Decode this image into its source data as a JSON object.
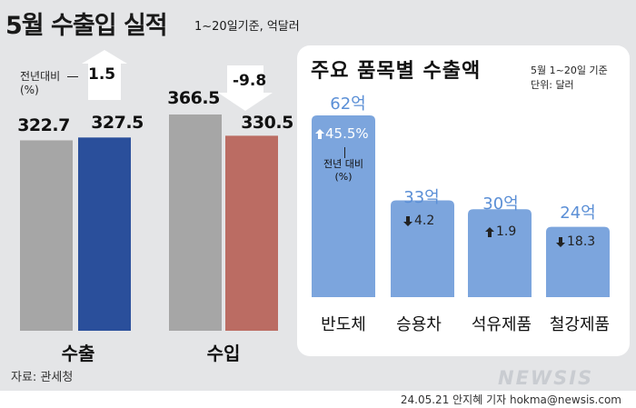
{
  "header": {
    "title": "5월 수출입 실적",
    "subtitle": "1~20일기준, 억달러"
  },
  "change_note": {
    "line1": "전년대비",
    "line2": "(%)"
  },
  "chart_data": [
    {
      "type": "bar",
      "title": "5월 수출입 실적",
      "unit": "억달러",
      "categories": [
        "수출",
        "수입"
      ],
      "series": [
        {
          "name": "",
          "values": [
            322.7,
            366.5
          ],
          "labels": [
            "322.7",
            "366.5"
          ],
          "color": "#a6a6a6"
        },
        {
          "name": "",
          "values": [
            327.5,
            330.5
          ],
          "labels": [
            "327.5",
            "330.5"
          ],
          "colors": [
            "#2a4f9b",
            "#bb6c63"
          ]
        }
      ],
      "yoy_change_pct": [
        1.5,
        -9.8
      ],
      "yoy_change_labels": [
        "1.5",
        "-9.8"
      ],
      "ylim": [
        0,
        400
      ]
    },
    {
      "type": "bar",
      "title": "주요 품목별 수출액",
      "unit": "달러",
      "note_line1": "5월 1~20일 기준",
      "note_line2": "단위: 달러",
      "categories": [
        "반도체",
        "승용차",
        "석유제품",
        "철강제품"
      ],
      "values": [
        62,
        33,
        30,
        24
      ],
      "value_labels": [
        "62억",
        "33억",
        "30억",
        "24억"
      ],
      "yoy_change_pct": [
        45.5,
        -4.2,
        1.9,
        -18.3
      ],
      "yoy_change_labels": [
        "45.5%",
        "4.2",
        "1.9",
        "18.3"
      ],
      "yoy_note_line1": "전년 대비",
      "yoy_note_line2": "(%)",
      "color": "#7ca5dd",
      "ylim": [
        0,
        70
      ]
    }
  ],
  "colors": {
    "background": "#e4e5e7",
    "gray_bar": "#a6a6a6",
    "export_bar": "#2a4f9b",
    "import_bar": "#bb6c63",
    "item_bar": "#7ca5dd",
    "item_value_text": "#5b8fd6"
  },
  "footer": {
    "source": "자료: 관세청",
    "credit": "24.05.21 안지혜 기자 hokma@newsis.com",
    "logo": "NEWSIS"
  }
}
